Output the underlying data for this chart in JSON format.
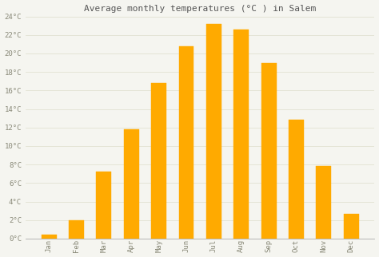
{
  "months": [
    "Jan",
    "Feb",
    "Mar",
    "Apr",
    "May",
    "Jun",
    "Jul",
    "Aug",
    "Sep",
    "Oct",
    "Nov",
    "Dec"
  ],
  "values": [
    0.4,
    2.0,
    7.2,
    11.8,
    16.8,
    20.8,
    23.2,
    22.6,
    19.0,
    12.8,
    7.8,
    2.7
  ],
  "bar_color": "#FFAA00",
  "bar_edge_color": "#FFAA00",
  "title": "Average monthly temperatures (°C ) in Salem",
  "ylim": [
    0,
    24
  ],
  "ytick_step": 2,
  "background_color": "#f5f5f0",
  "plot_bg_color": "#f5f5f0",
  "grid_color": "#ddddcc",
  "title_fontsize": 8,
  "tick_fontsize": 6.5,
  "title_color": "#555555",
  "tick_color": "#888877"
}
